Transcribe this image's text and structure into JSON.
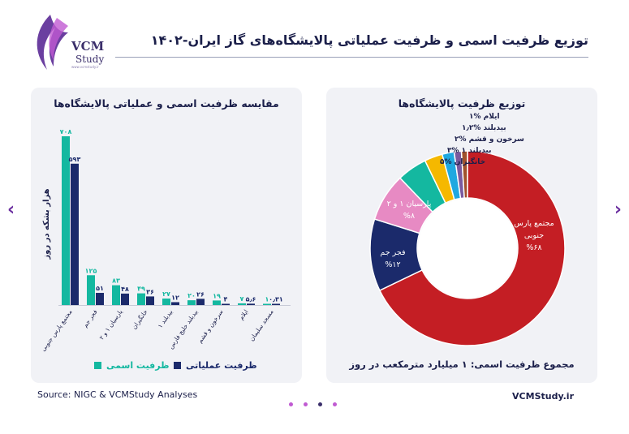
{
  "header": {
    "title": "توزیع ظرفیت اسمی و ظرفیت عملیاتی پالایشگاه‌های گاز ایران-۱۴۰۲",
    "logo_text_1": "VCM",
    "logo_text_2": "Study",
    "logo_url": "www.vcmstudy.ir"
  },
  "footer": {
    "source": "Source: NIGC & VCMStudy Analyses",
    "site": "VCMStudy.ir"
  },
  "colors": {
    "nominal": "#14b8a0",
    "operational": "#1b2a6b",
    "accent": "#6b2fa0"
  },
  "chart_data": [
    {
      "type": "bar",
      "title": "مقایسه ظرفیت اسمی و عملیاتی پالایشگاه‌ها",
      "xlabel": "",
      "ylabel": "هزار بشکه در روز",
      "categories": [
        "مجتمع پارس جنوبی",
        "فجر جم",
        "پارسیان ۱ و ۲",
        "خانگیران",
        "بیدبلند ۱",
        "بیدبلند خلیج فارس",
        "سرخون و قشم",
        "ایلام",
        "مسجد سلیمان"
      ],
      "series": [
        {
          "name": "ظرفیت اسمی",
          "values": [
            708,
            125,
            83,
            49,
            27,
            20,
            19,
            7,
            1
          ],
          "labels": [
            "۷۰۸",
            "۱۲۵",
            "۸۳",
            "۴۹",
            "۲۷",
            "۲۰",
            "۱۹",
            "۷",
            "۱"
          ]
        },
        {
          "name": "ظرفیت عملیاتی",
          "values": [
            593,
            51,
            48,
            36,
            12,
            26,
            4,
            5.6,
            0.31
          ],
          "labels": [
            "۵۹۳",
            "۵۱",
            "۴۸",
            "۳۶",
            "۱۲",
            "۲۶",
            "۴",
            "۵٫۶",
            "۰٫۳۱"
          ]
        }
      ],
      "ylim": [
        0,
        708
      ],
      "legend": [
        "ظرفیت اسمی",
        "ظرفیت عملیاتی"
      ],
      "legend_position": "bottom"
    },
    {
      "type": "pie",
      "style": "donut",
      "title": "توزیع ظرفیت پالایشگاه‌ها",
      "slices": [
        {
          "label": "مجتمع پارس جنوبی",
          "value": 68,
          "pct_label": "%۶۸",
          "color": "#c41e24"
        },
        {
          "label": "فجر جم",
          "value": 12,
          "pct_label": "%۱۲",
          "color": "#1b2a6b"
        },
        {
          "label": "پارسیان ۱ و ۲",
          "value": 8,
          "pct_label": "%۸",
          "color": "#e78ac3"
        },
        {
          "label": "خانگیران",
          "value": 5,
          "pct_label": "%۵",
          "color": "#14b8a0"
        },
        {
          "label": "بیدبلند ۱",
          "value": 3,
          "pct_label": "%۳",
          "color": "#f5b800"
        },
        {
          "label": "سرخون و قشم",
          "value": 2,
          "pct_label": "%۲",
          "color": "#1fa8e0"
        },
        {
          "label": "بیدبلند",
          "value": 1.2,
          "pct_label": "%۱٫۲",
          "color": "#7a5a9e"
        },
        {
          "label": "ایلام",
          "value": 1,
          "pct_label": "%۱",
          "color": "#a0522d"
        }
      ],
      "outside_labels": [
        "ایلام %۱",
        "بیدبلند %۱٫۲",
        "سرخون و قشم %۲",
        "بیدبلند ۱ %۳",
        "خانگیران %۵"
      ],
      "total_text": "مجموع ظرفیت اسمی: ۱ میلیارد مترمکعب در روز"
    }
  ]
}
